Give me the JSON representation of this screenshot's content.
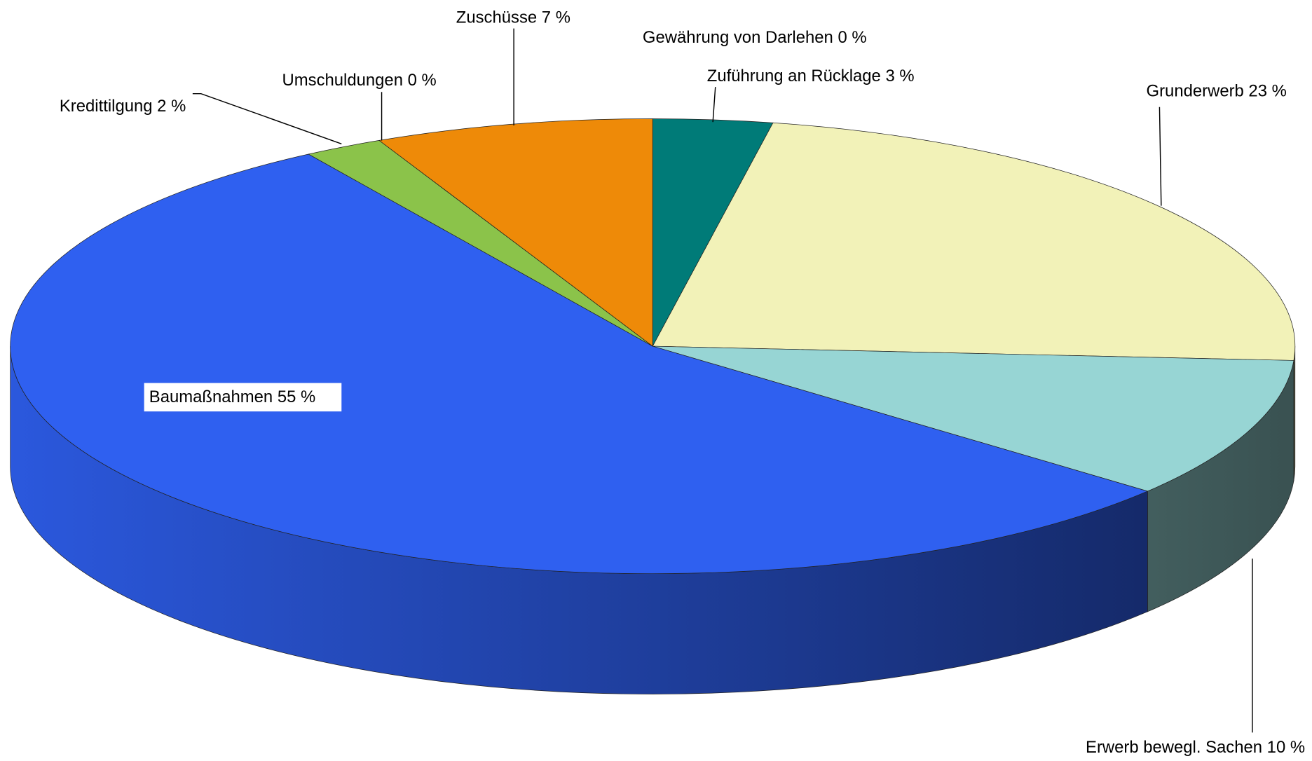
{
  "chart_data": {
    "type": "pie3d",
    "categories": [
      "Gewährung  von Darlehen",
      "Zuführung  an Rücklage",
      "Grunderwerb ",
      "Erwerb bewegl.  Sachen",
      "Baumaßnahmen",
      "Kredittilgung",
      "Umschuldungen ",
      "Zuschüsse"
    ],
    "values": [
      0,
      3,
      23,
      10,
      55,
      2,
      0,
      7
    ],
    "value_labels": [
      "0 %",
      "3 %",
      "23 %",
      "10 %",
      "55 %",
      "2 %",
      "0 %",
      "7 %"
    ],
    "colors": [
      "#1a6b8a",
      "#007b78",
      "#f2f2b8",
      "#97d5d4",
      "#2f60f0",
      "#8bc34a",
      "#9acd50",
      "#ee8a08"
    ]
  }
}
